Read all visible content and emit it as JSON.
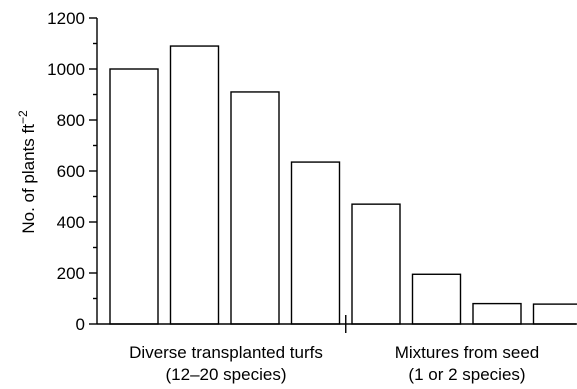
{
  "chart_data": {
    "type": "bar",
    "ylabel": "No. of plants ft",
    "ylabel_exponent": "−2",
    "ylim": [
      0,
      1200
    ],
    "y_major_ticks": [
      0,
      200,
      400,
      600,
      800,
      1000,
      1200
    ],
    "y_minor_ticks": [
      100,
      300,
      500,
      700,
      900,
      1100
    ],
    "values": [
      1000,
      1090,
      910,
      635,
      470,
      195,
      80,
      78
    ],
    "groups": [
      {
        "label_line1": "Diverse transplanted turfs",
        "label_line2": "(12–20 species)",
        "bar_count": 4
      },
      {
        "label_line1": "Mixtures from seed",
        "label_line2": "(1 or 2 species)",
        "bar_count": 4
      }
    ],
    "grid": false,
    "legend": "none"
  }
}
